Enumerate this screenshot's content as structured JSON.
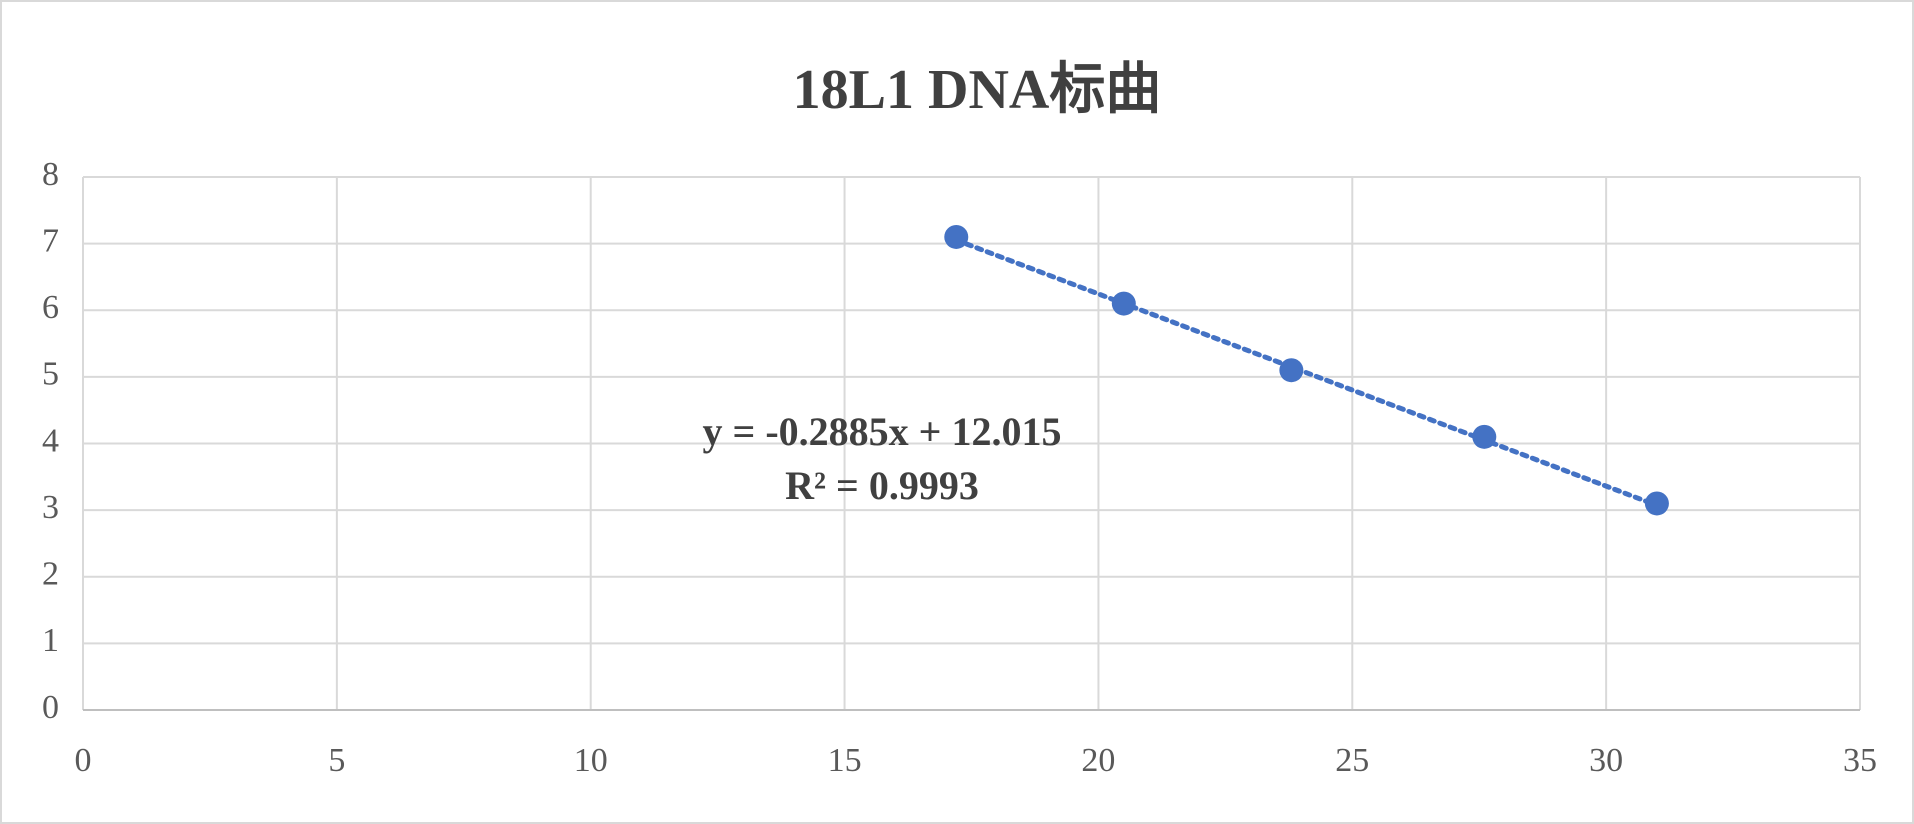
{
  "chart_data": {
    "type": "scatter",
    "title": "18L1  DNA标曲",
    "series": [
      {
        "color": "#4472c4",
        "x": [
          17.2,
          20.5,
          23.8,
          27.6,
          31.0
        ],
        "values": [
          7.1,
          6.1,
          5.1,
          4.1,
          3.1
        ]
      }
    ],
    "xlim": [
      0,
      35
    ],
    "xticks": [
      0,
      5,
      10,
      15,
      20,
      25,
      30,
      35
    ],
    "ylim": [
      0,
      8
    ],
    "yticks": [
      0,
      1,
      2,
      3,
      4,
      5,
      6,
      7,
      8
    ],
    "grid": true,
    "trendline": {
      "slope": -0.2885,
      "intercept": 12.015,
      "style": "dotted",
      "equation": "y = -0.2885x + 12.015",
      "r_squared": "R² = 0.9993"
    }
  }
}
